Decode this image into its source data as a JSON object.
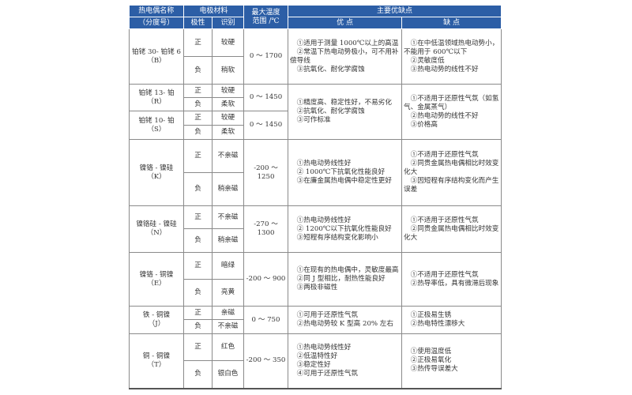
{
  "header": {
    "name_line1": "热电偶名称",
    "name_line2": "（分度号）",
    "electrode": "电极材料",
    "polarity": "极性",
    "identify": "识别",
    "temp_line1": "最大温度",
    "temp_line2": "范围 /℃",
    "proscons": "主要优缺点",
    "pros": "优 点",
    "cons": "缺 点",
    "header_color": "#2c5ea6"
  },
  "rows": [
    {
      "name": "铂铑 30- 铂铑 6",
      "code": "（B）",
      "pos_label": "正",
      "pos_id": "较硬",
      "neg_label": "负",
      "neg_id": "稍软",
      "temp": "0 ～ 1700",
      "pros": [
        "①适用于测量 1000℃以上的高温",
        "②常温下热电动势极小，可不用补偿导线",
        "③抗氧化、耐化学腐蚀"
      ],
      "cons": [
        "①在中低温领域热电动势小，不能用于 600℃以下",
        "②灵敏度低",
        "③热电动势的线性不好"
      ]
    },
    {
      "name": "铂铑 13- 铂",
      "code": "（R）",
      "pos_label": "正",
      "pos_id": "较硬",
      "neg_label": "负",
      "neg_id": "柔软",
      "temp": "0 ～ 1450",
      "pros": [
        "①精度高、稳定性好，不易劣化",
        "②抗氧化、耐化学腐蚀",
        "③可作标准"
      ],
      "cons": [
        "①不适用于还原性气氛（如氢气、金属蒸气）",
        "②热电动势的线性不好",
        "③价格高"
      ],
      "shared_next": true
    },
    {
      "name": "铂铑 10- 铂",
      "code": "（S）",
      "pos_label": "正",
      "pos_id": "较硬",
      "neg_label": "负",
      "neg_id": "柔软",
      "temp": "0 ～ 1450"
    },
    {
      "name": "镍铬 - 镍硅",
      "code": "（K）",
      "pos_label": "正",
      "pos_id": "不亲磁",
      "neg_label": "负",
      "neg_id": "稍亲磁",
      "temp": "-200 ～ 1250",
      "pros": [
        "①热电动势线性好",
        "② 1000℃下抗氧化性能良好",
        "③在廉金属热电偶中稳定性更好"
      ],
      "cons": [
        "①不适用于还原性气氛",
        "②同贵金属热电偶相比时效变化大",
        "③因短程有序结构变化而产生误差"
      ]
    },
    {
      "name": "镍铬硅 - 镍硅",
      "code": "（N）",
      "pos_label": "正",
      "pos_id": "不亲磁",
      "neg_label": "负",
      "neg_id": "稍亲磁",
      "temp": "-270 ～ 1300",
      "pros": [
        "①热电动势线性好",
        "② 1200℃以下抗氧化性能良好",
        "③短程有序结构变化影响小"
      ],
      "cons": [
        "①不适用于还原性气氛",
        "②同贵金属热电偶相比时效变化大"
      ]
    },
    {
      "name": "镍铬 - 铜镍",
      "code": "（E）",
      "pos_label": "正",
      "pos_id": "暗绿",
      "neg_label": "负",
      "neg_id": "亮黄",
      "temp": "-200 ～ 900",
      "pros": [
        "①在现有的热电偶中，灵敏度最高",
        "②同 J 型相比，耐热性能良好",
        "③两极非磁性"
      ],
      "cons": [
        "①不适用于还原性气氛",
        "②热导率低，具有微滞后现象"
      ]
    },
    {
      "name": "铁 - 铜镍",
      "code": "（J）",
      "pos_label": "正",
      "pos_id": "亲磁",
      "neg_label": "负",
      "neg_id": "不亲磁",
      "temp": "0 ～ 750",
      "pros": [
        "①可用于还原性气氛",
        "②热电动势较 K 型高 20% 左右"
      ],
      "cons": [
        "①正极易生锈",
        "②热电特性漂移大"
      ]
    },
    {
      "name": "铜 - 铜镍",
      "code": "（T）",
      "pos_label": "正",
      "pos_id": "红色",
      "neg_label": "负",
      "neg_id": "银白色",
      "temp": "-200 ～ 350",
      "pros": [
        "①热电动势线性好",
        "②低温特性好",
        "③稳定性好",
        "④可用于还原性气氛"
      ],
      "cons": [
        "①使用温度低",
        "②正极易氧化",
        "③热传导误差大"
      ]
    }
  ]
}
